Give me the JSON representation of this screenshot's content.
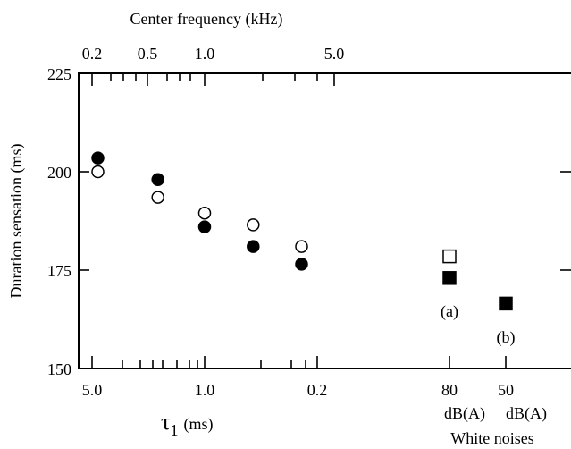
{
  "chart_data": {
    "type": "scatter",
    "top_axis": {
      "label": "Center frequency (kHz)",
      "ticks": [
        "0.2",
        "0.5",
        "1.0",
        "5.0"
      ]
    },
    "ylabel": "Duration sensation (ms)",
    "ylim": [
      150,
      225
    ],
    "yticks": [
      "225",
      "200",
      "175",
      "150"
    ],
    "x_axis": {
      "label_main": "τ",
      "label_sub": "1",
      "label_unit": "(ms)",
      "scale": "log",
      "ticks": [
        "5.0",
        "1.0",
        "0.2"
      ]
    },
    "series": [
      {
        "marker": "filled-circle",
        "points": [
          {
            "tau1_ms": 4.6,
            "value": 203.5
          },
          {
            "tau1_ms": 1.95,
            "value": 198.0
          },
          {
            "tau1_ms": 1.0,
            "value": 186.0
          },
          {
            "tau1_ms": 0.5,
            "value": 181.0
          },
          {
            "tau1_ms": 0.25,
            "value": 176.5
          }
        ]
      },
      {
        "marker": "open-circle",
        "points": [
          {
            "tau1_ms": 4.6,
            "value": 200.0
          },
          {
            "tau1_ms": 1.95,
            "value": 193.5
          },
          {
            "tau1_ms": 1.0,
            "value": 189.5
          },
          {
            "tau1_ms": 0.5,
            "value": 186.5
          },
          {
            "tau1_ms": 0.25,
            "value": 181.0
          }
        ]
      }
    ],
    "white_noise": {
      "title": "White noises",
      "conditions": [
        {
          "level": "80",
          "unit": "dB(A)",
          "tag": "(a)",
          "open_square": 178.5,
          "filled_square": 173.0
        },
        {
          "level": "50",
          "unit": "dB(A)",
          "tag": "(b)",
          "filled_square": 166.5
        }
      ]
    }
  }
}
